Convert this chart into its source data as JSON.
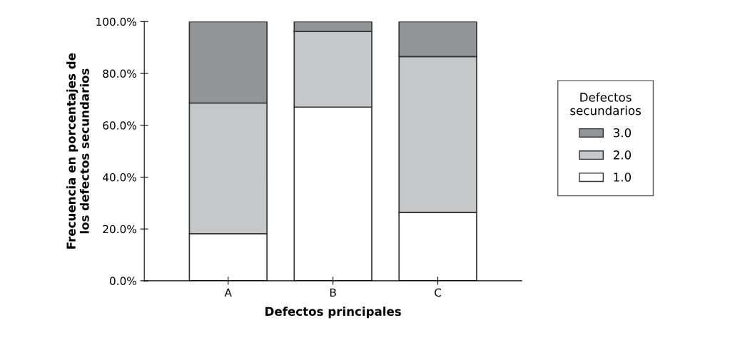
{
  "chart_data": {
    "type": "bar",
    "stacked": true,
    "xlabel": "Defectos principales",
    "ylabel": "Frecuencia en porcentajes de\nlos defectos secundarios",
    "legend_title": "Defectos\nsecundarios",
    "legend": "right",
    "categories": [
      "A",
      "B",
      "C"
    ],
    "series": [
      {
        "name": "1.0",
        "color": "#ffffff",
        "values": [
          18.2,
          67.0,
          26.4
        ]
      },
      {
        "name": "2.0",
        "color": "#c6c7c9",
        "values": [
          50.4,
          29.2,
          60.1
        ]
      },
      {
        "name": "3.0",
        "color": "#939498",
        "values": [
          31.4,
          3.8,
          13.5
        ]
      }
    ],
    "ylim": [
      0,
      100
    ],
    "yticks": [
      {
        "value": 0,
        "label": "0.0%"
      },
      {
        "value": 20,
        "label": "20.0%"
      },
      {
        "value": 40,
        "label": "40.0%"
      },
      {
        "value": 60,
        "label": "60.0%"
      },
      {
        "value": 80,
        "label": "80.0%"
      },
      {
        "value": 100,
        "label": "100.0%"
      }
    ],
    "grid": false
  }
}
